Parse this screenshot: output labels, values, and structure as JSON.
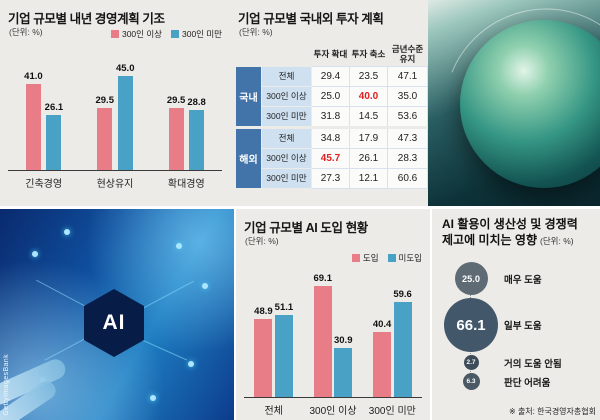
{
  "credits": {
    "photo_credit": "GettyImagesBank",
    "ai_badge": "AI"
  },
  "chart_data": [
    {
      "id": "mgmt-plan",
      "type": "bar",
      "title": "기업 규모별 내년 경영계획 기조",
      "unit": "(단위: %)",
      "categories": [
        "긴축경영",
        "현상유지",
        "확대경영"
      ],
      "series": [
        {
          "name": "300인 이상",
          "color": "#e87d88",
          "values": [
            41.0,
            29.5,
            29.5
          ]
        },
        {
          "name": "300인 미만",
          "color": "#4aa1c6",
          "values": [
            26.1,
            45.0,
            28.8
          ]
        }
      ],
      "ylim": [
        0,
        50
      ],
      "legend_position": "top-right"
    },
    {
      "id": "investment-table",
      "type": "table",
      "title": "기업 규모별 국내외 투자 계획",
      "unit": "(단위: %)",
      "col_headers": [
        "투자 확대",
        "투자 축소",
        "금년수준 유지"
      ],
      "row_groups": [
        {
          "group": "국내",
          "rows": [
            {
              "label": "전체",
              "values": [
                "29.4",
                "23.5",
                "47.1"
              ],
              "highlight": []
            },
            {
              "label": "300인 이상",
              "values": [
                "25.0",
                "40.0",
                "35.0"
              ],
              "highlight": [
                1
              ]
            },
            {
              "label": "300인 미만",
              "values": [
                "31.8",
                "14.5",
                "53.6"
              ],
              "highlight": []
            }
          ]
        },
        {
          "group": "해외",
          "rows": [
            {
              "label": "전체",
              "values": [
                "34.8",
                "17.9",
                "47.3"
              ],
              "highlight": []
            },
            {
              "label": "300인 이상",
              "values": [
                "45.7",
                "26.1",
                "28.3"
              ],
              "highlight": [
                0
              ]
            },
            {
              "label": "300인 미만",
              "values": [
                "27.3",
                "12.1",
                "60.6"
              ],
              "highlight": []
            }
          ]
        }
      ],
      "highlight_color": "#e01f1f"
    },
    {
      "id": "ai-adoption",
      "type": "bar",
      "title": "기업 규모별 AI 도입 현황",
      "unit": "(단위: %)",
      "categories": [
        "전체",
        "300인 이상",
        "300인 미만"
      ],
      "series": [
        {
          "name": "도입",
          "color": "#e87d88",
          "values": [
            48.9,
            69.1,
            40.4
          ]
        },
        {
          "name": "미도입",
          "color": "#4aa1c6",
          "values": [
            51.1,
            30.9,
            59.6
          ]
        }
      ],
      "ylim": [
        0,
        75
      ],
      "legend_position": "top-right"
    },
    {
      "id": "ai-impact",
      "type": "bubble",
      "title_line1": "AI 활용이 생산성 및 경쟁력",
      "title_line2": "제고에 미치는 영향",
      "unit": "(단위: %)",
      "items": [
        {
          "label": "매우 도움",
          "value": 25.0,
          "color": "#5e6b74"
        },
        {
          "label": "일부 도움",
          "value": 66.1,
          "color": "#43576b"
        },
        {
          "label": "거의 도움 안됨",
          "value": 2.7,
          "color": "#3e4c59"
        },
        {
          "label": "판단 어려움",
          "value": 6.3,
          "color": "#4a5964"
        }
      ],
      "source": "※ 출처: 한국경영자총협회"
    }
  ]
}
